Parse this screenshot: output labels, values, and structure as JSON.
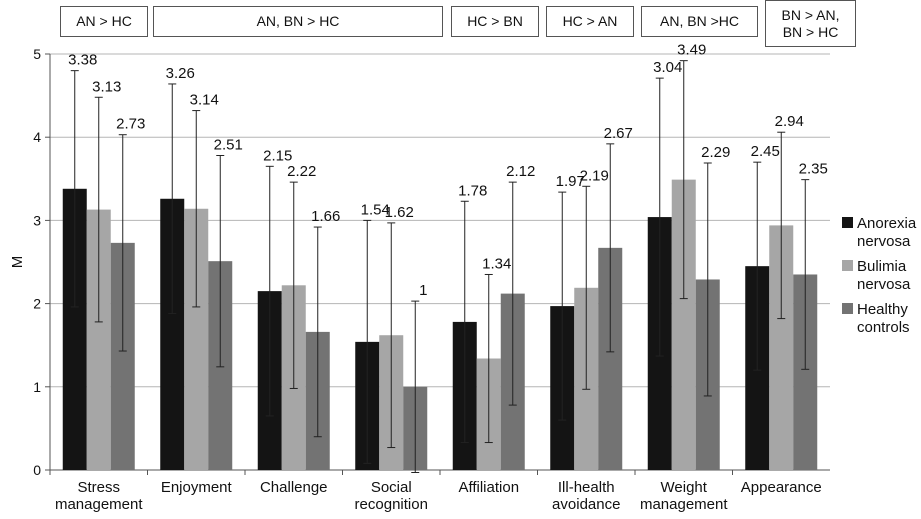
{
  "chart_data": {
    "type": "bar",
    "ylabel": "M",
    "xlabel": "",
    "ylim": [
      0,
      5
    ],
    "yticks": [
      0,
      1,
      2,
      3,
      4,
      5
    ],
    "grid": true,
    "legend_position": "right",
    "categories": [
      [
        "Stress",
        "management"
      ],
      [
        "Enjoyment"
      ],
      [
        "Challenge"
      ],
      [
        "Social",
        "recognition"
      ],
      [
        "Affiliation"
      ],
      [
        "Ill-health",
        "avoidance"
      ],
      [
        "Weight",
        "management"
      ],
      [
        "Appearance"
      ]
    ],
    "series": [
      {
        "name": [
          "Anorexia",
          "nervosa"
        ],
        "color": "#141414",
        "values": [
          3.38,
          3.26,
          2.15,
          1.54,
          1.78,
          1.97,
          3.04,
          2.45
        ],
        "labels": [
          "3.38",
          "3.26",
          "2.15",
          "1.54",
          "1.78",
          "1.97",
          "3.04",
          "2.45"
        ],
        "sd": [
          1.42,
          1.38,
          1.5,
          1.46,
          1.45,
          1.37,
          1.67,
          1.25
        ]
      },
      {
        "name": [
          "Bulimia",
          "nervosa"
        ],
        "color": "#a6a6a6",
        "values": [
          3.13,
          3.14,
          2.22,
          1.62,
          1.34,
          2.19,
          3.49,
          2.94
        ],
        "labels": [
          "3.13",
          "3.14",
          "2.22",
          "1.62",
          "1.34",
          "2.19",
          "3.49",
          "2.94"
        ],
        "sd": [
          1.35,
          1.18,
          1.24,
          1.35,
          1.01,
          1.22,
          1.43,
          1.12
        ]
      },
      {
        "name": [
          "Healthy",
          "controls"
        ],
        "color": "#737373",
        "values": [
          2.73,
          2.51,
          1.66,
          1.0,
          2.12,
          2.67,
          2.29,
          2.35
        ],
        "labels": [
          "2.73",
          "2.51",
          "1.66",
          "1",
          "2.12",
          "2.67",
          "2.29",
          "2.35"
        ],
        "sd": [
          1.3,
          1.27,
          1.26,
          1.03,
          1.34,
          1.25,
          1.4,
          1.14
        ]
      }
    ],
    "comparisons": [
      {
        "text": [
          "AN > HC"
        ]
      },
      {
        "text": [
          "AN, BN > HC"
        ]
      },
      {
        "text": [
          "HC > BN"
        ]
      },
      {
        "text": [
          "HC > AN"
        ]
      },
      {
        "text": [
          "AN, BN >HC"
        ]
      },
      {
        "text": [
          "BN > AN,",
          "BN > HC"
        ]
      }
    ]
  }
}
